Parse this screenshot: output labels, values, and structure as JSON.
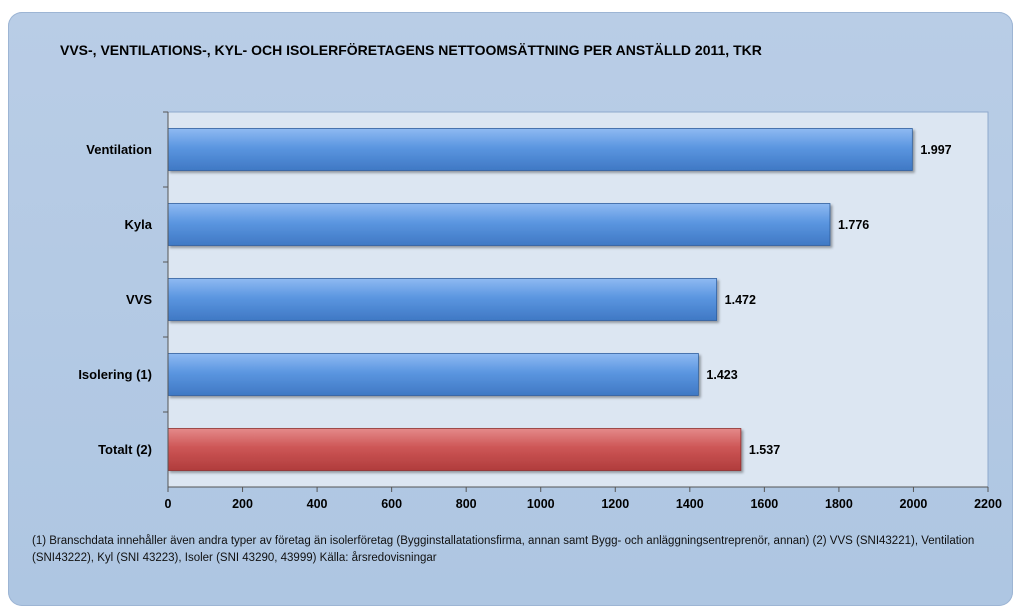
{
  "chart_data": {
    "type": "bar",
    "orientation": "horizontal",
    "title": "VVS-, VENTILATIONS-, KYL- OCH ISOLERFÖRETAGENS NETTOOMSÄTTNING PER ANSTÄLLD 2011, TKR",
    "categories": [
      "Ventilation",
      "Kyla",
      "VVS",
      "Isolering (1)",
      "Totalt (2)"
    ],
    "values": [
      1997,
      1776,
      1472,
      1423,
      1537
    ],
    "value_labels": [
      "1.997",
      "1.776",
      "1.472",
      "1.423",
      "1.537"
    ],
    "bar_colors": [
      "#5b96e0",
      "#5b96e0",
      "#5b96e0",
      "#5b96e0",
      "#cd5656"
    ],
    "xlim": [
      0,
      2200
    ],
    "xticks": [
      0,
      200,
      400,
      600,
      800,
      1000,
      1200,
      1400,
      1600,
      1800,
      2000,
      2200
    ],
    "xtick_labels": [
      "0",
      "200",
      "400",
      "600",
      "800",
      "1000",
      "1200",
      "1400",
      "1600",
      "1800",
      "2000",
      "2200"
    ],
    "xlabel": "",
    "ylabel": "",
    "grid": false,
    "legend": "none"
  },
  "footnote": "(1) Branschdata innehåller även andra typer av företag än isolerföretag (Bygginstallatationsfirma, annan samt Bygg- och anläggningsentreprenör, annan) (2) VVS (SNI43221), Ventilation (SNI43222), Kyl (SNI 43223), Isoler (SNI 43290, 43999) Källa: årsredovisningar",
  "colors": {
    "plot_background": "#dce6f2",
    "frame_background": "#b9cde6"
  }
}
